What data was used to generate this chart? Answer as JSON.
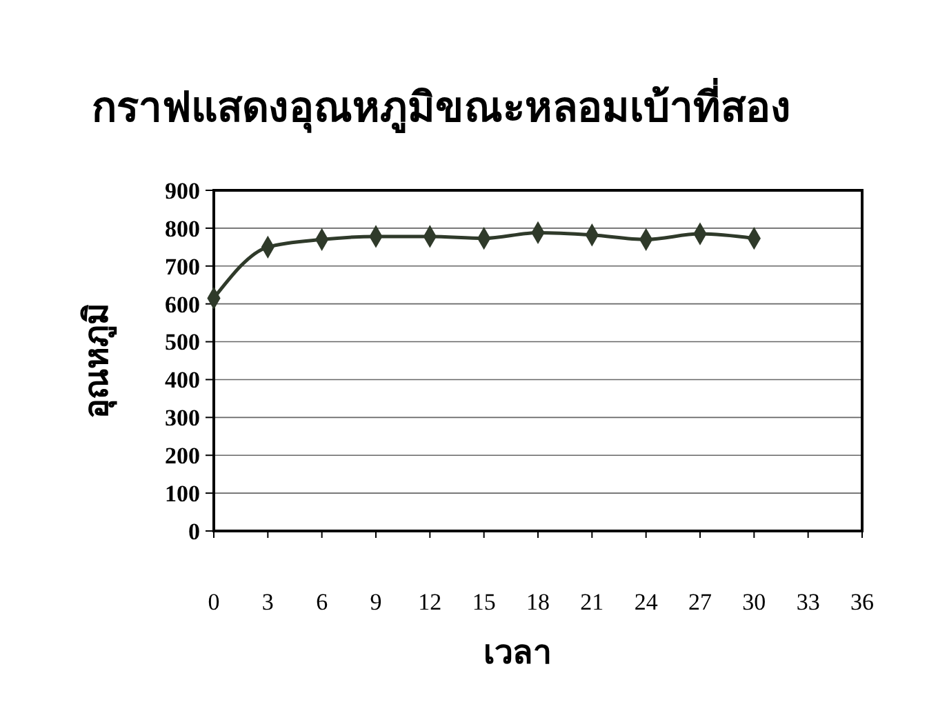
{
  "chart_data": {
    "type": "line",
    "title": "กราฟแสดงอุณหภูมิขณะหลอมเบ้าที่สอง",
    "xlabel": "เวลา",
    "ylabel": "อุณหภูมิ",
    "x": [
      0,
      3,
      6,
      9,
      12,
      15,
      18,
      21,
      24,
      27,
      30
    ],
    "series": [
      {
        "color": "#2f3a2a",
        "values": [
          615,
          750,
          770,
          778,
          778,
          773,
          788,
          782,
          770,
          785,
          773
        ]
      }
    ],
    "xlim": [
      0,
      36
    ],
    "xticks": [
      0,
      3,
      6,
      9,
      12,
      15,
      18,
      21,
      24,
      27,
      30,
      33,
      36
    ],
    "ylim": [
      0,
      900
    ],
    "yticks": [
      0,
      100,
      200,
      300,
      400,
      500,
      600,
      700,
      800,
      900
    ],
    "grid": "y",
    "marker": "diamond",
    "line_style": "solid"
  }
}
